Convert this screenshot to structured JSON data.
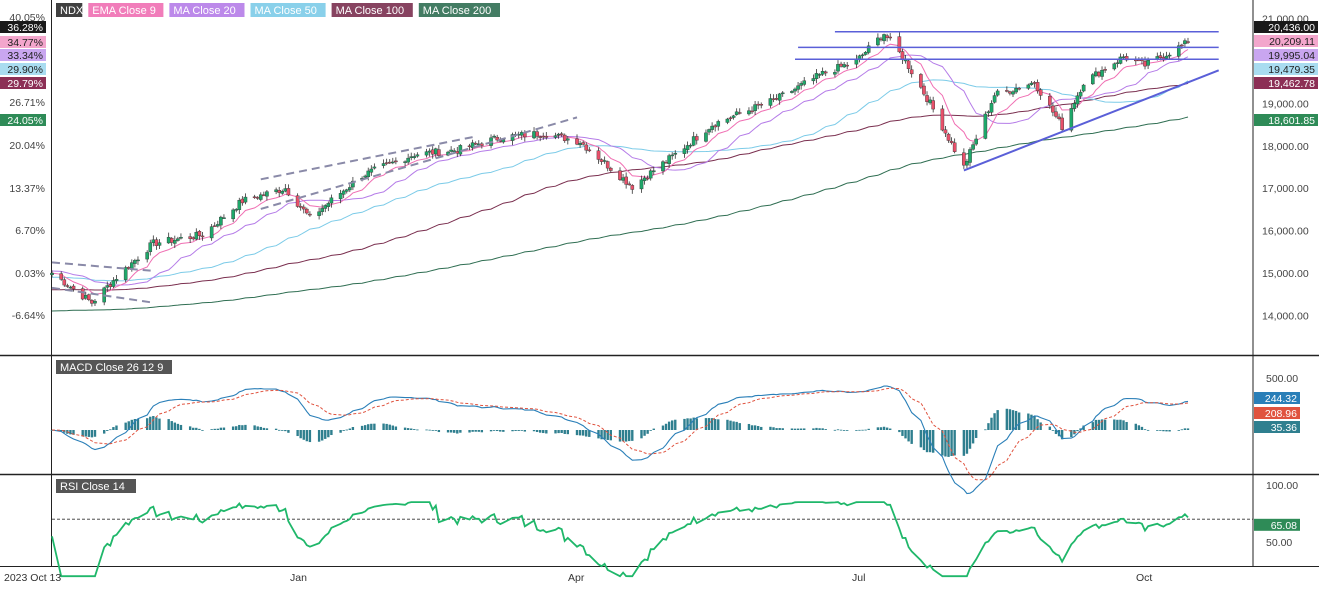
{
  "legend": [
    {
      "label": "NDX",
      "color": "#2b2b2b"
    },
    {
      "label": "EMA Close 9",
      "color": "#f06fb3"
    },
    {
      "label": "MA Close 20",
      "color": "#b57ce8"
    },
    {
      "label": "MA Close 50",
      "color": "#7ccbe8"
    },
    {
      "label": "MA Close 100",
      "color": "#7a2f4f"
    },
    {
      "label": "MA Close 200",
      "color": "#2f6e52"
    }
  ],
  "percent_axis_labels": [
    "40.05%",
    "26.71%",
    "20.04%",
    "13.37%",
    "6.70%",
    "0.03%",
    "-6.64%"
  ],
  "price_axis_labels": [
    "21,000.00",
    "19,000.00",
    "18,000.00",
    "17,000.00",
    "16,000.00",
    "15,000.00",
    "14,000.00"
  ],
  "left_badges": [
    {
      "text": "36.28%",
      "color": "#1a1a1a"
    },
    {
      "text": "34.77%",
      "color": "#f3a6cc"
    },
    {
      "text": "33.34%",
      "color": "#c9a6f0"
    },
    {
      "text": "29.90%",
      "color": "#a9dcf0"
    },
    {
      "text": "29.79%",
      "color": "#8c2f55"
    },
    {
      "text": "24.05%",
      "color": "#2e8b57"
    }
  ],
  "right_badges": [
    {
      "text": "20,436.00",
      "color": "#1a1a1a"
    },
    {
      "text": "20,209.11",
      "color": "#f3a6cc"
    },
    {
      "text": "19,995.04",
      "color": "#c9a6f0"
    },
    {
      "text": "19,479.35",
      "color": "#a9dcf0"
    },
    {
      "text": "19,462.78",
      "color": "#8c2f55"
    },
    {
      "text": "18,601.85",
      "color": "#2e8b57"
    }
  ],
  "macd": {
    "title": "MACD Close 26 12 9",
    "axis_label": "500.00",
    "badges": [
      {
        "text": "244.32",
        "color": "#2a7fb8"
      },
      {
        "text": "208.96",
        "color": "#e0533f"
      },
      {
        "text": "35.36",
        "color": "#2f7f8f"
      }
    ]
  },
  "rsi": {
    "title": "RSI Close 14",
    "axis_labels": [
      "100.00",
      "50.00"
    ],
    "badge": {
      "text": "65.08",
      "color": "#2e8b57"
    }
  },
  "time_axis_labels": [
    "2023 Oct 13",
    "Jan",
    "Apr",
    "Jul",
    "Oct"
  ],
  "colors": {
    "up": "#1ea86a",
    "down": "#e8506a",
    "ema9": "#f06fb3",
    "ma20": "#b57ce8",
    "ma50": "#7ccbe8",
    "ma100": "#7a2f4f",
    "ma200": "#2f6e52",
    "trendline": "#5a5fd8",
    "channel": "#8a8aa8",
    "macd": "#2a7fb8",
    "signal": "#e0533f",
    "hist": "#2f7f8f",
    "rsi": "#1fb76a"
  },
  "chart_data": {
    "type": "candlestick",
    "symbol": "NDX",
    "x_range": [
      "2023-10-13",
      "2024-10-17"
    ],
    "price_range": [
      13400,
      21300
    ],
    "last_values": {
      "close": 20436.0,
      "ema9": 20209.11,
      "ma20": 19995.04,
      "ma50": 19479.35,
      "ma100": 19462.78,
      "ma200": 18601.85,
      "macd": 244.32,
      "signal": 208.96,
      "histogram": 35.36,
      "rsi": 65.08
    },
    "close_path": [
      [
        "2023-10-13",
        15000
      ],
      [
        "2023-10-26",
        14300
      ],
      [
        "2023-11-03",
        14900
      ],
      [
        "2023-11-15",
        15700
      ],
      [
        "2023-12-01",
        15900
      ],
      [
        "2023-12-14",
        16700
      ],
      [
        "2023-12-28",
        17000
      ],
      [
        "2024-01-05",
        16300
      ],
      [
        "2024-01-22",
        17300
      ],
      [
        "2024-02-08",
        17800
      ],
      [
        "2024-02-22",
        17900
      ],
      [
        "2024-03-07",
        18200
      ],
      [
        "2024-03-21",
        18300
      ],
      [
        "2024-04-02",
        18100
      ],
      [
        "2024-04-19",
        17040
      ],
      [
        "2024-05-03",
        17800
      ],
      [
        "2024-05-15",
        18500
      ],
      [
        "2024-06-05",
        19100
      ],
      [
        "2024-06-20",
        19700
      ],
      [
        "2024-07-01",
        20000
      ],
      [
        "2024-07-10",
        20650
      ],
      [
        "2024-07-17",
        20000
      ],
      [
        "2024-07-25",
        19000
      ],
      [
        "2024-08-05",
        17500
      ],
      [
        "2024-08-15",
        19200
      ],
      [
        "2024-08-28",
        19500
      ],
      [
        "2024-09-06",
        18450
      ],
      [
        "2024-09-13",
        19500
      ],
      [
        "2024-09-26",
        20100
      ],
      [
        "2024-10-03",
        19900
      ],
      [
        "2024-10-17",
        20436
      ]
    ]
  }
}
